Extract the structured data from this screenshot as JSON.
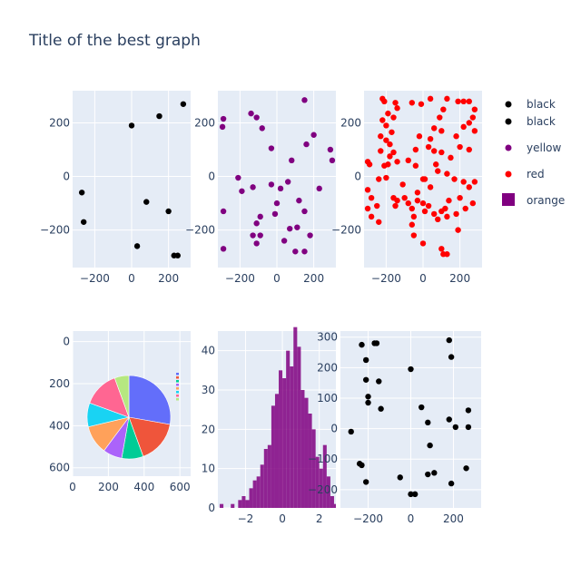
{
  "title": "Title of the best graph",
  "colors": {
    "plot_bg": "#e5ecf6",
    "grid": "#ffffff",
    "tick_text": "#2a3f5f",
    "black": "#000000",
    "purple": "#800080",
    "red": "#ff0000",
    "histogram": "#800080"
  },
  "legend": {
    "placement": "right",
    "entries": [
      {
        "label": "black",
        "symbol": "dot",
        "color": "#000000"
      },
      {
        "label": "black",
        "symbol": "dot",
        "color": "#000000"
      },
      {
        "label": "yellow",
        "symbol": "dot",
        "color": "#800080"
      },
      {
        "label": "red",
        "symbol": "dot",
        "color": "#ff0000"
      },
      {
        "label": "orange",
        "symbol": "square",
        "color": "#800080"
      }
    ]
  },
  "chart_data": [
    {
      "type": "scatter",
      "color": "#000000",
      "xlim": [
        -320,
        320
      ],
      "ylim": [
        -340,
        320
      ],
      "xticks": [
        -200,
        0,
        200
      ],
      "yticks": [
        -200,
        0,
        200
      ],
      "grid": true,
      "points": [
        [
          -270,
          -60
        ],
        [
          -260,
          -170
        ],
        [
          0,
          190
        ],
        [
          150,
          225
        ],
        [
          280,
          270
        ],
        [
          80,
          -95
        ],
        [
          200,
          -130
        ],
        [
          30,
          -260
        ],
        [
          230,
          -295
        ],
        [
          250,
          -295
        ]
      ]
    },
    {
      "type": "scatter",
      "color": "#800080",
      "xlim": [
        -320,
        320
      ],
      "ylim": [
        -340,
        320
      ],
      "xticks": [
        -200,
        0,
        200
      ],
      "yticks": [
        -200,
        0,
        200
      ],
      "grid": true,
      "points": [
        [
          -290,
          215
        ],
        [
          -295,
          185
        ],
        [
          -140,
          235
        ],
        [
          -110,
          220
        ],
        [
          -80,
          180
        ],
        [
          -30,
          105
        ],
        [
          150,
          285
        ],
        [
          200,
          155
        ],
        [
          160,
          120
        ],
        [
          290,
          100
        ],
        [
          300,
          60
        ],
        [
          80,
          60
        ],
        [
          -210,
          -5
        ],
        [
          -190,
          -55
        ],
        [
          -130,
          -40
        ],
        [
          -30,
          -30
        ],
        [
          60,
          -20
        ],
        [
          20,
          -45
        ],
        [
          120,
          -90
        ],
        [
          230,
          -45
        ],
        [
          -290,
          -130
        ],
        [
          -90,
          -150
        ],
        [
          -110,
          -175
        ],
        [
          -130,
          -220
        ],
        [
          0,
          -100
        ],
        [
          -10,
          -140
        ],
        [
          70,
          -195
        ],
        [
          110,
          -190
        ],
        [
          150,
          -130
        ],
        [
          -110,
          -250
        ],
        [
          -90,
          -220
        ],
        [
          40,
          -240
        ],
        [
          100,
          -280
        ],
        [
          150,
          -280
        ],
        [
          180,
          -220
        ],
        [
          -290,
          -270
        ]
      ]
    },
    {
      "type": "scatter",
      "color": "#ff0000",
      "xlim": [
        -320,
        320
      ],
      "ylim": [
        -340,
        320
      ],
      "xticks": [
        -200,
        0,
        200
      ],
      "yticks": [
        -200,
        0,
        200
      ],
      "grid": true,
      "points": [
        [
          -220,
          290
        ],
        [
          -210,
          280
        ],
        [
          -150,
          275
        ],
        [
          -140,
          255
        ],
        [
          -190,
          235
        ],
        [
          -160,
          220
        ],
        [
          -220,
          210
        ],
        [
          -200,
          190
        ],
        [
          -170,
          165
        ],
        [
          -230,
          150
        ],
        [
          -200,
          135
        ],
        [
          -180,
          120
        ],
        [
          -230,
          95
        ],
        [
          -160,
          90
        ],
        [
          -180,
          75
        ],
        [
          -140,
          55
        ],
        [
          -190,
          45
        ],
        [
          -210,
          40
        ],
        [
          -300,
          55
        ],
        [
          -290,
          45
        ],
        [
          -200,
          -5
        ],
        [
          -240,
          -10
        ],
        [
          -300,
          -50
        ],
        [
          -280,
          -80
        ],
        [
          -250,
          -110
        ],
        [
          -300,
          -120
        ],
        [
          -280,
          -150
        ],
        [
          -240,
          -170
        ],
        [
          -160,
          -80
        ],
        [
          -140,
          -90
        ],
        [
          -150,
          -110
        ],
        [
          -100,
          -80
        ],
        [
          -80,
          -100
        ],
        [
          -60,
          -120
        ],
        [
          -50,
          -150
        ],
        [
          -30,
          -90
        ],
        [
          0,
          -100
        ],
        [
          10,
          -130
        ],
        [
          30,
          -110
        ],
        [
          60,
          -140
        ],
        [
          80,
          -160
        ],
        [
          100,
          -130
        ],
        [
          120,
          -120
        ],
        [
          140,
          -90
        ],
        [
          130,
          -150
        ],
        [
          180,
          -140
        ],
        [
          190,
          -200
        ],
        [
          230,
          -120
        ],
        [
          270,
          -100
        ],
        [
          200,
          -80
        ],
        [
          250,
          -40
        ],
        [
          280,
          -20
        ],
        [
          220,
          -20
        ],
        [
          170,
          -10
        ],
        [
          130,
          10
        ],
        [
          80,
          20
        ],
        [
          70,
          45
        ],
        [
          0,
          -10
        ],
        [
          -40,
          40
        ],
        [
          -80,
          60
        ],
        [
          -40,
          100
        ],
        [
          -20,
          150
        ],
        [
          30,
          110
        ],
        [
          40,
          140
        ],
        [
          60,
          180
        ],
        [
          100,
          170
        ],
        [
          90,
          220
        ],
        [
          110,
          250
        ],
        [
          130,
          290
        ],
        [
          190,
          280
        ],
        [
          220,
          280
        ],
        [
          250,
          280
        ],
        [
          280,
          250
        ],
        [
          270,
          220
        ],
        [
          250,
          200
        ],
        [
          220,
          185
        ],
        [
          280,
          170
        ],
        [
          200,
          110
        ],
        [
          250,
          100
        ],
        [
          150,
          70
        ],
        [
          100,
          90
        ],
        [
          60,
          95
        ],
        [
          -110,
          -30
        ],
        [
          -60,
          -180
        ],
        [
          -50,
          -220
        ],
        [
          0,
          -250
        ],
        [
          100,
          -270
        ],
        [
          110,
          -290
        ],
        [
          130,
          -290
        ],
        [
          -30,
          -60
        ],
        [
          40,
          -40
        ],
        [
          10,
          -10
        ],
        [
          -10,
          270
        ],
        [
          -60,
          275
        ],
        [
          40,
          290
        ],
        [
          180,
          150
        ]
      ]
    },
    {
      "type": "pie",
      "xlim": [
        0,
        660
      ],
      "ylim": [
        640,
        -50
      ],
      "xticks": [
        0,
        200,
        400,
        600
      ],
      "yticks": [
        0,
        200,
        400,
        600
      ],
      "values": [
        30,
        18,
        9,
        8,
        12,
        10,
        15,
        6
      ],
      "colors": [
        "#636efa",
        "#ef553b",
        "#00cc96",
        "#ab63fa",
        "#ffa15a",
        "#19d3f3",
        "#ff6692",
        "#b6e880"
      ]
    },
    {
      "type": "histogram",
      "color": "#800080",
      "xlim": [
        -3.5,
        2.9
      ],
      "ylim": [
        0,
        45
      ],
      "xticks": [
        -2,
        0,
        2
      ],
      "yticks": [
        0,
        10,
        20,
        30,
        40
      ],
      "bin_start": -3.6,
      "bin_width": 0.2,
      "counts": [
        0,
        1,
        0,
        0,
        1,
        0,
        2,
        3,
        2,
        5,
        7,
        8,
        11,
        15,
        16,
        26,
        29,
        35,
        33,
        40,
        36,
        46,
        41,
        30,
        28,
        24,
        20,
        13,
        10,
        16,
        8,
        3,
        1,
        1
      ]
    },
    {
      "type": "scatter",
      "color": "#000000",
      "xlim": [
        -330,
        330
      ],
      "ylim": [
        -260,
        320
      ],
      "xticks": [
        -200,
        0,
        200
      ],
      "yticks": [
        -200,
        -100,
        0,
        100,
        200,
        300
      ],
      "grid": true,
      "points": [
        [
          -230,
          275
        ],
        [
          -170,
          280
        ],
        [
          -160,
          280
        ],
        [
          -210,
          225
        ],
        [
          -210,
          160
        ],
        [
          -200,
          105
        ],
        [
          -200,
          85
        ],
        [
          -140,
          65
        ],
        [
          -150,
          155
        ],
        [
          0,
          195
        ],
        [
          50,
          70
        ],
        [
          80,
          20
        ],
        [
          180,
          290
        ],
        [
          190,
          235
        ],
        [
          180,
          30
        ],
        [
          210,
          5
        ],
        [
          270,
          60
        ],
        [
          270,
          5
        ],
        [
          260,
          -130
        ],
        [
          -280,
          -10
        ],
        [
          -240,
          -115
        ],
        [
          -230,
          -120
        ],
        [
          -210,
          -175
        ],
        [
          -50,
          -160
        ],
        [
          0,
          -215
        ],
        [
          20,
          -215
        ],
        [
          80,
          -150
        ],
        [
          110,
          -145
        ],
        [
          90,
          -55
        ],
        [
          190,
          -180
        ]
      ]
    }
  ]
}
